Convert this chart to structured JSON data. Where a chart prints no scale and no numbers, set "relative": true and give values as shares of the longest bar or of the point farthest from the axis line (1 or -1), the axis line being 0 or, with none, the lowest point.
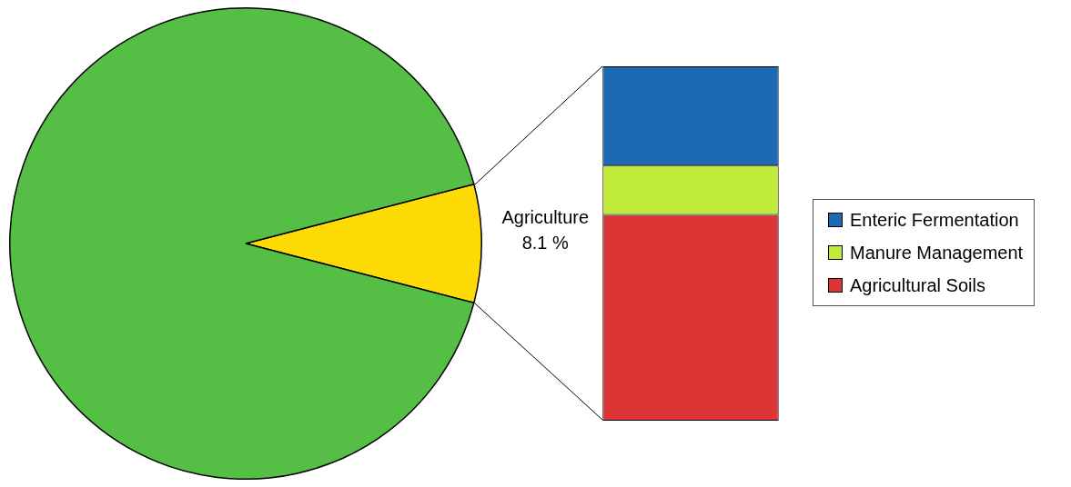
{
  "chart_data": [
    {
      "type": "pie",
      "categories": [
        "Agriculture",
        null
      ],
      "values": [
        8.1,
        91.9
      ],
      "colors": [
        "#ffdb05",
        "#55bf45"
      ],
      "value_labels": [
        "8.1 %",
        null
      ]
    },
    {
      "type": "bar",
      "stacked": true,
      "relative": true,
      "categories": [
        null
      ],
      "legend": "right",
      "series": [
        {
          "name": "Agricultural Soils",
          "color": "#dd3535",
          "values": [
            0.581
          ]
        },
        {
          "name": "Manure Management",
          "color": "#c0eb3b",
          "values": [
            0.139
          ]
        },
        {
          "name": "Enteric Fermentation",
          "color": "#1b6ab3",
          "values": [
            0.28
          ]
        }
      ]
    }
  ]
}
